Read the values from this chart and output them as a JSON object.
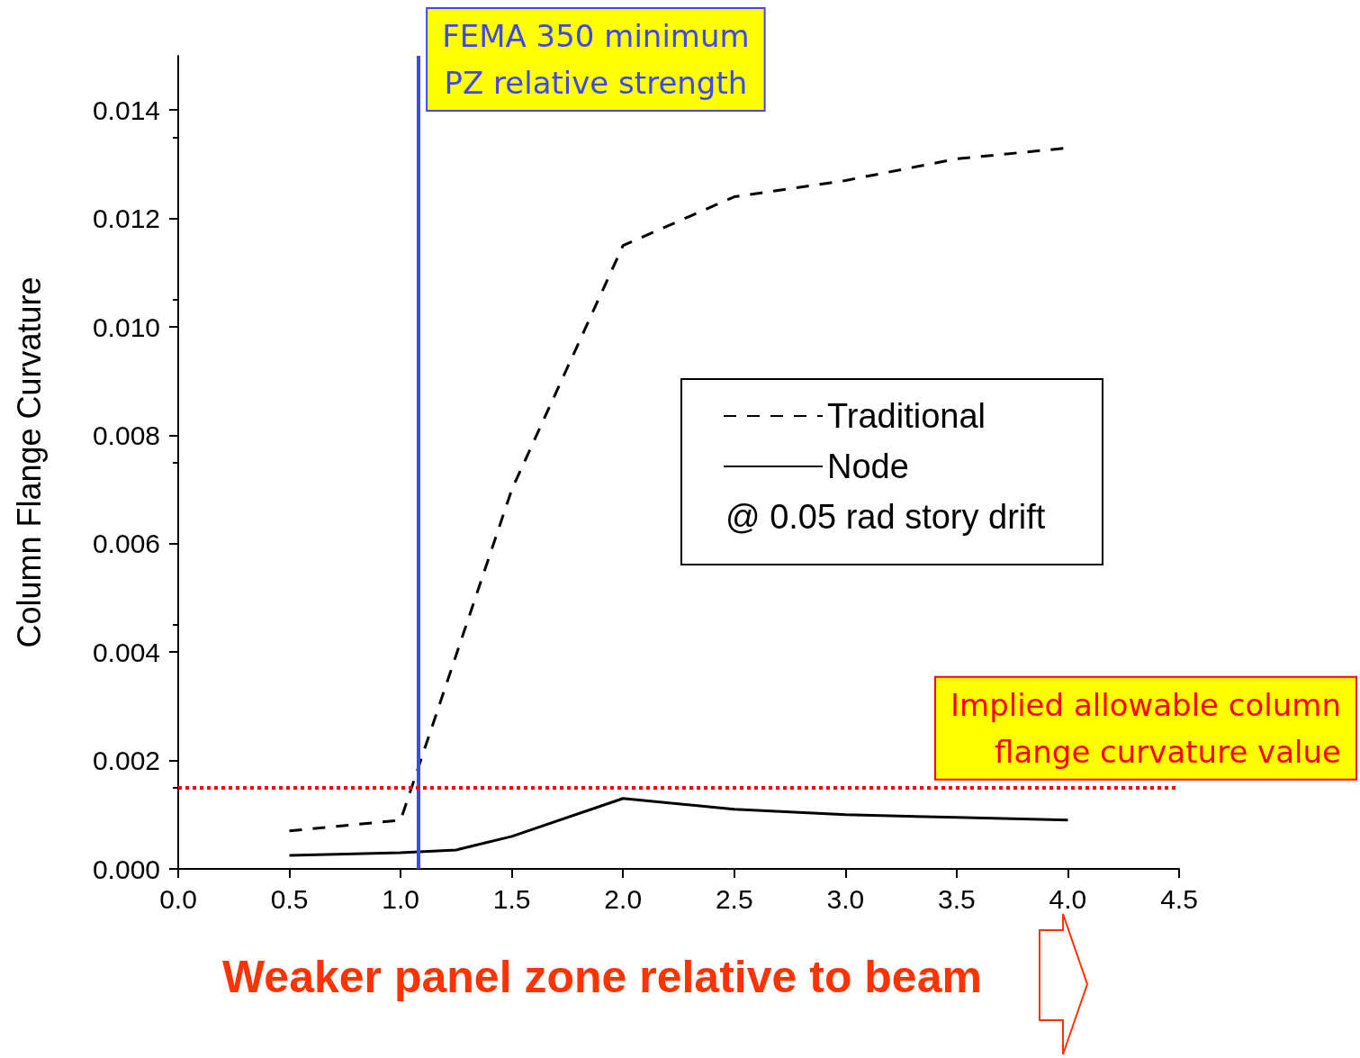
{
  "chart_data": {
    "type": "line",
    "xlabel": "Weaker panel zone relative to beam",
    "ylabel": "Column Flange Curvature",
    "legend_title": "@ 0.05 rad story drift",
    "xlim": [
      0,
      4.5
    ],
    "xticks": [
      {
        "value": 0,
        "label": "0.0"
      },
      {
        "value": 0.5,
        "label": "0.5"
      },
      {
        "value": 1,
        "label": "1.0"
      },
      {
        "value": 1.5,
        "label": "1.5"
      },
      {
        "value": 2,
        "label": "2.0"
      },
      {
        "value": 2.5,
        "label": "2.5"
      },
      {
        "value": 3,
        "label": "3.0"
      },
      {
        "value": 3.5,
        "label": "3.5"
      },
      {
        "value": 4,
        "label": "4.0"
      },
      {
        "value": 4.5,
        "label": "4.5"
      }
    ],
    "ylim": [
      0,
      0.015
    ],
    "yticks": [
      {
        "value": 0,
        "label": "0.000"
      },
      {
        "value": 0.002,
        "label": "0.002"
      },
      {
        "value": 0.004,
        "label": "0.004"
      },
      {
        "value": 0.006,
        "label": "0.006"
      },
      {
        "value": 0.008,
        "label": "0.008"
      },
      {
        "value": 0.01,
        "label": "0.010"
      },
      {
        "value": 0.012,
        "label": "0.012"
      },
      {
        "value": 0.014,
        "label": "0.014"
      }
    ],
    "series": [
      {
        "name": "Traditional",
        "color": "#000000",
        "line_style": "dashed",
        "x": [
          0.5,
          1.0,
          1.5,
          2.0,
          2.5,
          3.0,
          3.5,
          4.0
        ],
        "values": [
          0.0007,
          0.0009,
          0.007,
          0.0115,
          0.0124,
          0.0127,
          0.0131,
          0.0133
        ]
      },
      {
        "name": "Node",
        "color": "#000000",
        "line_style": "solid",
        "x": [
          0.5,
          1.0,
          1.25,
          1.5,
          2.0,
          2.5,
          3.0,
          3.5,
          4.0
        ],
        "values": [
          0.00025,
          0.0003,
          0.00035,
          0.0006,
          0.0013,
          0.0011,
          0.001,
          0.00095,
          0.0009
        ]
      }
    ],
    "ref_lines": [
      {
        "axis": "x",
        "value": 1.08,
        "label": "FEMA 350 minimum\nPZ relative strength",
        "color": "#3f48f5",
        "line_style": "solid"
      },
      {
        "axis": "y",
        "value": 0.0015,
        "label": "Implied allowable column\nflange curvature value",
        "color": "#ff0000",
        "line_style": "dotted"
      }
    ],
    "legend": "right",
    "grid": false,
    "marker": "none"
  }
}
